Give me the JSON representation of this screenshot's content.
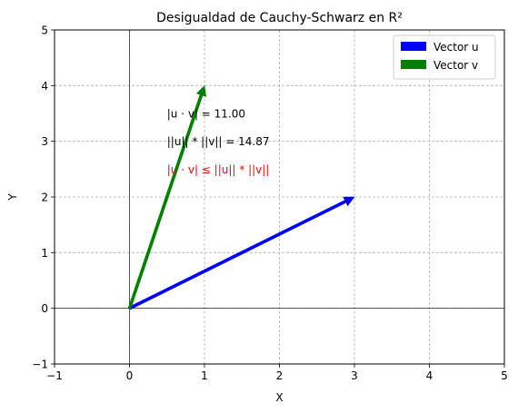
{
  "chart_data": {
    "type": "quiver",
    "title": "Desigualdad de Cauchy-Schwarz en R²",
    "xlabel": "X",
    "ylabel": "Y",
    "xlim": [
      -1,
      5
    ],
    "ylim": [
      -1,
      5
    ],
    "xticks": [
      -1,
      0,
      1,
      2,
      3,
      4,
      5
    ],
    "yticks": [
      -1,
      0,
      1,
      2,
      3,
      4,
      5
    ],
    "grid": true,
    "legend_position": "top-right",
    "series": [
      {
        "name": "Vector u",
        "color": "#0000ff",
        "origin": [
          0,
          0
        ],
        "vector": [
          3,
          2
        ]
      },
      {
        "name": "Vector v",
        "color": "#008000",
        "origin": [
          0,
          0
        ],
        "vector": [
          1,
          4
        ]
      }
    ],
    "annotations": [
      {
        "text": "|u · v| = 11.00",
        "x": 0.5,
        "y": 3.5,
        "color": "#000000"
      },
      {
        "text": "||u|| * ||v|| = 14.87",
        "x": 0.5,
        "y": 3.0,
        "color": "#000000"
      },
      {
        "text": "|u · v| ≤ ||u|| * ||v||",
        "x": 0.5,
        "y": 2.5,
        "color": "#ff0000"
      }
    ]
  }
}
